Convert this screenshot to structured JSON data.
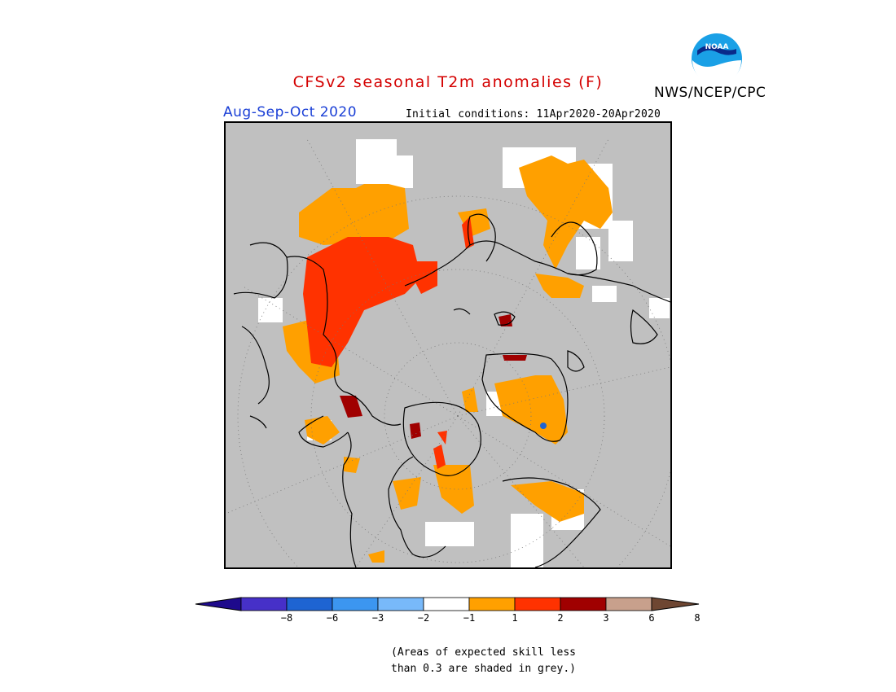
{
  "header": {
    "title": "CFSv2 seasonal T2m anomalies (F)",
    "period": "Aug-Sep-Oct 2020",
    "initial_conditions": "Initial conditions: 11Apr2020-20Apr2020",
    "agency": "NWS/NCEP/CPC",
    "logo_text": "NOAA"
  },
  "map": {
    "projection": "north-polar-stereographic",
    "background_color": "#c0c0c0",
    "grid": "dotted",
    "regions_shown": [
      "Asia",
      "Arctic Ocean",
      "Greenland",
      "Canada",
      "Alaska",
      "Europe"
    ]
  },
  "colorbar": {
    "colors": [
      "#1e0a8c",
      "#4630c8",
      "#1e64d2",
      "#3c96f0",
      "#78b9fa",
      "#ffffff",
      "#ffa000",
      "#ff3200",
      "#a00000",
      "#c8a08c",
      "#6e4632"
    ],
    "labels": [
      "−8",
      "−6",
      "−3",
      "−2",
      "−1",
      "1",
      "2",
      "3",
      "6",
      "8"
    ]
  },
  "note": {
    "line1": "(Areas of expected skill less",
    "line2": "than 0.3 are shaded in grey.)"
  }
}
